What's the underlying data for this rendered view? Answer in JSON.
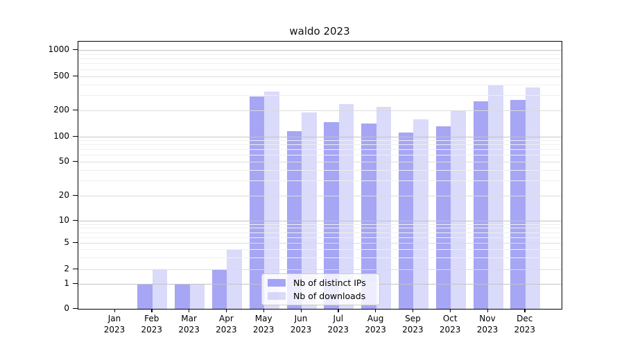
{
  "chart_data": {
    "type": "bar",
    "title": "waldo 2023",
    "categories": [
      "Jan",
      "Feb",
      "Mar",
      "Apr",
      "May",
      "Jun",
      "Jul",
      "Aug",
      "Sep",
      "Oct",
      "Nov",
      "Dec"
    ],
    "category_year": "2023",
    "series": [
      {
        "name": "Nb of distinct IPs",
        "values": [
          0,
          1,
          1,
          2,
          290,
          115,
          145,
          140,
          110,
          130,
          255,
          265
        ]
      },
      {
        "name": "Nb of downloads",
        "values": [
          0,
          2,
          1,
          4,
          330,
          190,
          235,
          218,
          158,
          197,
          400,
          370
        ]
      }
    ],
    "y_ticks": [
      0,
      1,
      2,
      5,
      10,
      20,
      50,
      100,
      200,
      500,
      1000
    ],
    "y_scale": "symlog",
    "ylim": [
      0,
      1150
    ],
    "grid": true,
    "legend_position": "lower-center",
    "colors": {
      "distinct_ips": "#7676f0a6",
      "downloads": "#9e9ef261",
      "major_grid": "#c3c3c3",
      "mid_grid": "#dcdcdc",
      "minor_grid": "#efefef",
      "axis": "#000000"
    }
  }
}
